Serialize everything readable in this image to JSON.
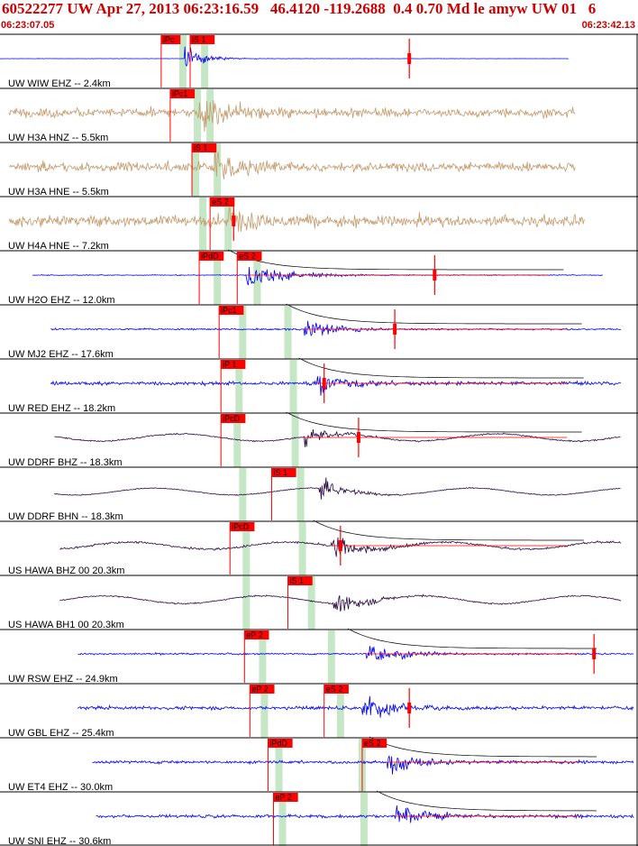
{
  "header": {
    "title": "60522277 UW Apr 27, 2013 06:23:16.59   46.4120 -119.2688  0.4 0.70 Md le amyw UW 01   6",
    "start_time": "06:23:07.05",
    "end_time": "06:23:42.13"
  },
  "colors": {
    "header_text": "#cc0000",
    "pick_box": "#ff0000",
    "window": "#c6e7c6",
    "trace_blue": "#0000ee",
    "trace_tan": "#c49a6c",
    "trace_dark": "#2a0a44"
  },
  "chart_data": {
    "type": "seismogram",
    "x_unit": "seconds after 06:23:07.05",
    "xlim": [
      0,
      35.08
    ],
    "traces": [
      {
        "station": "UW WIW EHZ -- 2.4km",
        "color": "trace_blue",
        "start": 0.0,
        "end": 31.4,
        "amp": 0.42,
        "noise": 0.01,
        "onset": 10.2,
        "env_decay": 4,
        "picks": [
          {
            "label": "iPc",
            "t": 8.9
          },
          {
            "label": "iS 1",
            "t": 10.5
          }
        ],
        "windows": [
          10.1,
          11.3
        ],
        "markers": [
          22.6
        ],
        "coda": false
      },
      {
        "station": "UW H3A HNZ -- 5.5km",
        "color": "trace_tan",
        "start": 0.5,
        "end": 31.8,
        "amp": 0.55,
        "noise": 0.28,
        "onset": 11.0,
        "env_decay": 6,
        "picks": [
          {
            "label": "iPc1",
            "t": 9.4
          }
        ],
        "windows": [
          10.9,
          11.6
        ],
        "markers": [],
        "coda": false
      },
      {
        "station": "UW H3A HNE -- 5.5km",
        "color": "trace_tan",
        "start": 0.5,
        "end": 31.8,
        "amp": 0.6,
        "noise": 0.26,
        "onset": 11.7,
        "env_decay": 6,
        "picks": [
          {
            "label": "iS 1",
            "t": 10.6
          }
        ],
        "windows": [
          10.8,
          12.0
        ],
        "markers": [],
        "coda": false
      },
      {
        "station": "UW H4A HNE -- 7.2km",
        "color": "trace_tan",
        "start": 0.5,
        "end": 32.3,
        "amp": 0.5,
        "noise": 0.4,
        "onset": 12.6,
        "env_decay": 6,
        "picks": [
          {
            "label": "eS 2",
            "t": 11.6
          }
        ],
        "windows": [
          11.2,
          12.6
        ],
        "markers": [
          12.9
        ],
        "coda": false
      },
      {
        "station": "UW H2O EHZ -- 12.0km",
        "color": "trace_blue",
        "start": 1.8,
        "end": 33.3,
        "amp": 0.45,
        "noise": 0.03,
        "onset": 13.6,
        "env_decay": 8,
        "picks": [
          {
            "label": "iPdD",
            "t": 11.0
          },
          {
            "label": "eS 2",
            "t": 13.1
          }
        ],
        "windows": [
          12.0,
          14.2
        ],
        "markers": [
          24.0
        ],
        "coda": true
      },
      {
        "station": "UW MJ2 EHZ -- 17.6km",
        "color": "trace_blue",
        "start": 2.8,
        "end": 34.3,
        "amp": 0.48,
        "noise": 0.06,
        "onset": 16.8,
        "env_decay": 5,
        "picks": [
          {
            "label": "iPc1",
            "t": 12.1
          }
        ],
        "windows": [
          13.4,
          15.9
        ],
        "markers": [
          21.8
        ],
        "coda": true
      },
      {
        "station": "UW RED EHZ -- 18.2km",
        "color": "trace_blue",
        "start": 2.8,
        "end": 34.3,
        "amp": 0.48,
        "noise": 0.12,
        "onset": 17.5,
        "env_decay": 5,
        "picks": [
          {
            "label": "iP 1",
            "t": 12.2
          }
        ],
        "windows": [
          13.2,
          16.2
        ],
        "markers": [
          17.9
        ],
        "coda": true
      },
      {
        "station": "UW DDRF BHZ -- 18.3km",
        "color": "trace_dark",
        "start": 3.0,
        "end": 34.3,
        "amp": 0.42,
        "noise": 0.05,
        "onset": 16.8,
        "env_decay": 5,
        "picks": [
          {
            "label": "iPcD",
            "t": 12.2
          }
        ],
        "windows": [
          13.1,
          16.3
        ],
        "markers": [
          19.8
        ],
        "coda": true
      },
      {
        "station": "UW DDRF BHN -- 18.3km",
        "color": "trace_dark",
        "start": 3.0,
        "end": 34.3,
        "amp": 0.4,
        "noise": 0.03,
        "onset": 17.6,
        "env_decay": 5,
        "picks": [
          {
            "label": "iS 1",
            "t": 15.0
          }
        ],
        "windows": [
          13.4,
          16.6
        ],
        "markers": [],
        "coda": false
      },
      {
        "station": "US HAWA BHZ 00 20.3km",
        "color": "trace_dark",
        "start": 3.3,
        "end": 34.3,
        "amp": 0.42,
        "noise": 0.08,
        "onset": 18.3,
        "env_decay": 6,
        "picks": [
          {
            "label": "iPcD",
            "t": 12.7
          }
        ],
        "windows": [
          13.6,
          16.7
        ],
        "markers": [
          18.8
        ],
        "coda": true
      },
      {
        "station": "US HAWA BH1 00 20.3km",
        "color": "trace_dark",
        "start": 3.3,
        "end": 34.3,
        "amp": 0.46,
        "noise": 0.04,
        "onset": 18.4,
        "env_decay": 6,
        "picks": [
          {
            "label": "iS 1",
            "t": 15.9
          }
        ],
        "windows": [
          13.6,
          17.2
        ],
        "markers": [],
        "coda": false
      },
      {
        "station": "UW RSW EHZ -- 24.9km",
        "color": "trace_blue",
        "start": 4.3,
        "end": 35.0,
        "amp": 0.42,
        "noise": 0.07,
        "onset": 20.2,
        "env_decay": 6,
        "picks": [
          {
            "label": "eP 2",
            "t": 13.5
          }
        ],
        "windows": [
          14.5,
          18.3
        ],
        "markers": [
          32.8
        ],
        "coda": true
      },
      {
        "station": "UW GBL EHZ -- 25.4km",
        "color": "trace_blue",
        "start": 4.3,
        "end": 35.0,
        "amp": 0.48,
        "noise": 0.12,
        "onset": 20.0,
        "env_decay": 6,
        "picks": [
          {
            "label": "eP 2",
            "t": 13.8
          },
          {
            "label": "eS 2",
            "t": 17.9
          }
        ],
        "windows": [
          14.6,
          18.8
        ],
        "markers": [
          22.6
        ],
        "coda": false
      },
      {
        "station": "UW ET4 EHZ -- 30.0km",
        "color": "trace_blue",
        "start": 5.1,
        "end": 35.0,
        "amp": 0.5,
        "noise": 0.1,
        "onset": 21.4,
        "env_decay": 5,
        "picks": [
          {
            "label": "iPdD",
            "t": 14.8
          },
          {
            "label": "eS 2",
            "t": 20.0
          }
        ],
        "windows": [
          15.4,
          20.0
        ],
        "markers": [],
        "coda": true
      },
      {
        "station": "UW SNI EHZ -- 30.6km",
        "color": "trace_blue",
        "start": 5.3,
        "end": 35.0,
        "amp": 0.52,
        "noise": 0.1,
        "onset": 21.8,
        "env_decay": 5,
        "picks": [
          {
            "label": "eP 2",
            "t": 15.1
          }
        ],
        "windows": [
          15.6,
          20.1
        ],
        "markers": [],
        "coda": true
      }
    ]
  }
}
